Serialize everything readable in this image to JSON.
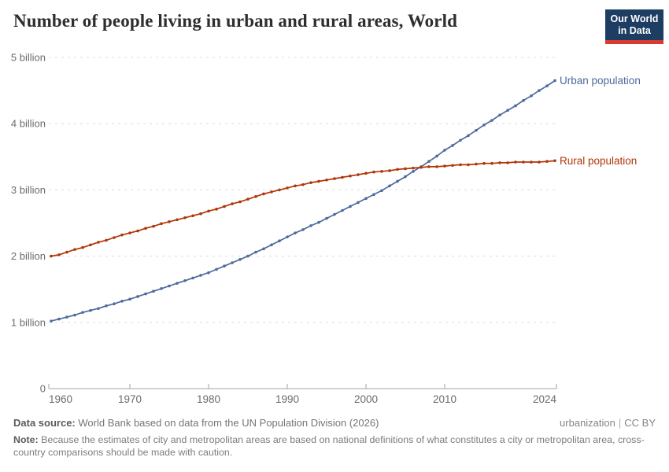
{
  "header": {
    "title": "Number of people living in urban and rural areas, World",
    "logo": {
      "line1": "Our World",
      "line2": "in Data",
      "bg_color": "#1d3d63",
      "bar_color": "#d93a34"
    }
  },
  "footer": {
    "source_label": "Data source:",
    "source_text": "World Bank based on data from the UN Population Division (2026)",
    "topic_link": "urbanization",
    "separator": "|",
    "license_link": "CC BY",
    "note_label": "Note:",
    "note_text": "Because the estimates of city and metropolitan areas are based on national definitions of what constitutes a city or metropolitan area, cross-country comparisons should be made with caution."
  },
  "chart_data": {
    "type": "line",
    "title": "Number of people living in urban and rural areas, World",
    "xlabel": "",
    "ylabel": "",
    "xlim": [
      1960,
      2024
    ],
    "ylim": [
      0,
      5
    ],
    "grid": "horizontal-dashed",
    "legend_position": "right-end-labels",
    "unit": "billion people",
    "xticks": [
      1960,
      1970,
      1980,
      1990,
      2000,
      2010,
      2024
    ],
    "yticks": [
      0,
      1,
      2,
      3,
      4,
      5
    ],
    "ytick_labels": [
      "0",
      "1 billion",
      "2 billion",
      "3 billion",
      "4 billion",
      "5 billion"
    ],
    "x": [
      1960,
      1961,
      1962,
      1963,
      1964,
      1965,
      1966,
      1967,
      1968,
      1969,
      1970,
      1971,
      1972,
      1973,
      1974,
      1975,
      1976,
      1977,
      1978,
      1979,
      1980,
      1981,
      1982,
      1983,
      1984,
      1985,
      1986,
      1987,
      1988,
      1989,
      1990,
      1991,
      1992,
      1993,
      1994,
      1995,
      1996,
      1997,
      1998,
      1999,
      2000,
      2001,
      2002,
      2003,
      2004,
      2005,
      2006,
      2007,
      2008,
      2009,
      2010,
      2011,
      2012,
      2013,
      2014,
      2015,
      2016,
      2017,
      2018,
      2019,
      2020,
      2021,
      2022,
      2023,
      2024
    ],
    "series": [
      {
        "name": "Urban population",
        "color": "#4C6A9C",
        "values": [
          1.02,
          1.05,
          1.08,
          1.11,
          1.15,
          1.18,
          1.21,
          1.25,
          1.28,
          1.32,
          1.35,
          1.39,
          1.43,
          1.47,
          1.51,
          1.55,
          1.59,
          1.63,
          1.67,
          1.71,
          1.75,
          1.8,
          1.85,
          1.9,
          1.95,
          2.0,
          2.06,
          2.11,
          2.17,
          2.23,
          2.29,
          2.35,
          2.4,
          2.46,
          2.51,
          2.57,
          2.63,
          2.69,
          2.75,
          2.81,
          2.87,
          2.93,
          2.99,
          3.06,
          3.13,
          3.2,
          3.28,
          3.35,
          3.43,
          3.51,
          3.6,
          3.67,
          3.75,
          3.82,
          3.9,
          3.98,
          4.05,
          4.13,
          4.2,
          4.27,
          4.35,
          4.42,
          4.5,
          4.57,
          4.65
        ]
      },
      {
        "name": "Rural population",
        "color": "#B13507",
        "values": [
          2.0,
          2.02,
          2.06,
          2.1,
          2.13,
          2.17,
          2.21,
          2.24,
          2.28,
          2.32,
          2.35,
          2.38,
          2.42,
          2.45,
          2.49,
          2.52,
          2.55,
          2.58,
          2.61,
          2.64,
          2.68,
          2.71,
          2.75,
          2.79,
          2.82,
          2.86,
          2.9,
          2.94,
          2.97,
          3.0,
          3.03,
          3.06,
          3.08,
          3.11,
          3.13,
          3.15,
          3.17,
          3.19,
          3.21,
          3.23,
          3.25,
          3.27,
          3.28,
          3.29,
          3.31,
          3.32,
          3.33,
          3.34,
          3.35,
          3.35,
          3.36,
          3.37,
          3.38,
          3.38,
          3.39,
          3.4,
          3.4,
          3.41,
          3.41,
          3.42,
          3.42,
          3.42,
          3.42,
          3.43,
          3.44
        ]
      }
    ],
    "style": {
      "gridline_color": "#dcdcdc",
      "axis_color": "#a3a3a3",
      "tick_label_color": "#6b6b6b"
    }
  }
}
